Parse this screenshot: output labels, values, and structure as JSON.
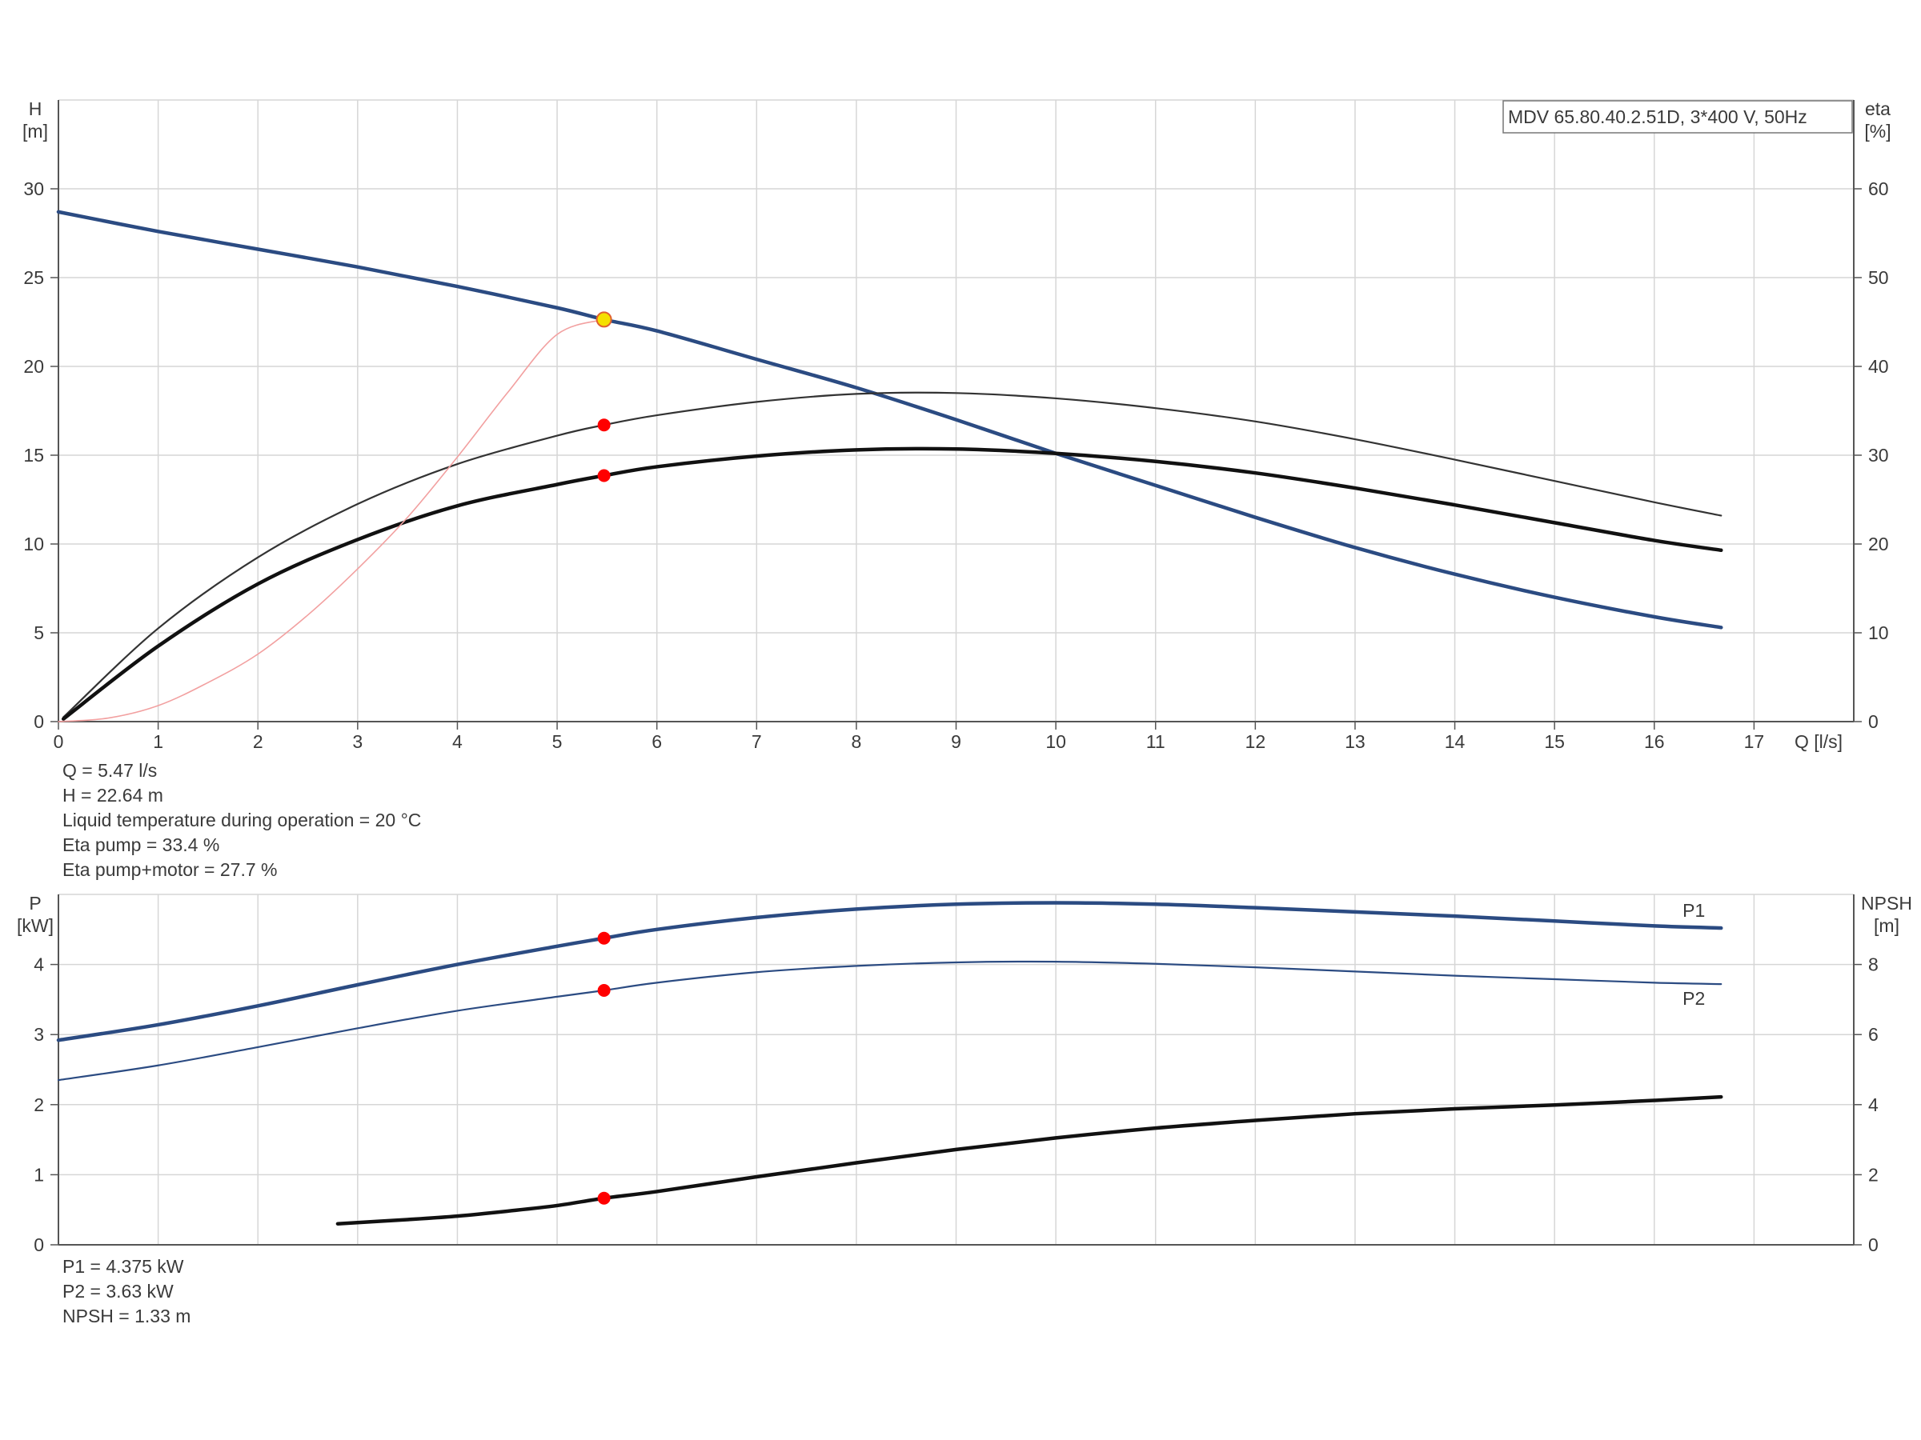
{
  "chart_data": [
    {
      "type": "line",
      "title": "MDV 65.80.40.2.51D, 3*400 V, 50Hz",
      "xlabel": "Q [l/s]",
      "ylabel_left": [
        "H",
        "[m]"
      ],
      "ylabel_right": [
        "eta",
        "[%]"
      ],
      "xlim": [
        0,
        18
      ],
      "ylim_left": [
        0,
        35
      ],
      "ylim_right": [
        0,
        70
      ],
      "x_ticks": [
        "0",
        "1",
        "2",
        "3",
        "4",
        "5",
        "6",
        "7",
        "8",
        "9",
        "10",
        "11",
        "12",
        "13",
        "14",
        "15",
        "16",
        "17"
      ],
      "y_left_ticks": [
        "0",
        "5",
        "10",
        "15",
        "20",
        "25",
        "30"
      ],
      "y_right_ticks": [
        "0",
        "10",
        "20",
        "30",
        "40",
        "50",
        "60"
      ],
      "grid": true,
      "series": [
        {
          "axis": "left",
          "color": "#2b4b82",
          "x": [
            0,
            1,
            2,
            3,
            4,
            5,
            5.47,
            6,
            7,
            8,
            9,
            10,
            11,
            12,
            13,
            14,
            15,
            16,
            16.67
          ],
          "y": [
            28.7,
            27.6,
            26.6,
            25.6,
            24.5,
            23.3,
            22.64,
            22.0,
            20.4,
            18.8,
            17.0,
            15.1,
            13.3,
            11.5,
            9.8,
            8.3,
            7.0,
            5.9,
            5.3
          ]
        },
        {
          "axis": "right",
          "color": "#333333",
          "x": [
            0.05,
            1,
            2,
            3,
            4,
            5,
            5.47,
            6,
            7,
            8,
            9,
            10,
            11,
            12,
            13,
            14,
            15,
            16,
            16.67
          ],
          "y": [
            0.5,
            10.5,
            18.5,
            24.5,
            29.0,
            32.2,
            33.4,
            34.5,
            36.0,
            36.9,
            37.0,
            36.4,
            35.3,
            33.8,
            31.8,
            29.5,
            27.1,
            24.7,
            23.2
          ]
        },
        {
          "axis": "right",
          "color": "#111111",
          "x": [
            0.05,
            1,
            2,
            3,
            4,
            5,
            5.47,
            6,
            7,
            8,
            9,
            10,
            11,
            12,
            13,
            14,
            15,
            16,
            16.67
          ],
          "y": [
            0.3,
            8.5,
            15.5,
            20.5,
            24.3,
            26.7,
            27.7,
            28.7,
            29.9,
            30.6,
            30.7,
            30.2,
            29.3,
            28.0,
            26.3,
            24.4,
            22.4,
            20.4,
            19.3
          ]
        },
        {
          "axis": "left",
          "color": "#f2a0a0",
          "x": [
            0,
            0.5,
            1,
            1.5,
            2,
            2.5,
            3,
            3.5,
            4,
            4.5,
            5,
            5.47
          ],
          "y": [
            0,
            0.2,
            0.9,
            2.2,
            3.8,
            6.0,
            8.6,
            11.5,
            14.9,
            18.5,
            21.8,
            22.64
          ]
        }
      ],
      "operating_points": [
        {
          "x": 5.47,
          "y": 22.64,
          "axis": "left",
          "color": "#f5e000"
        },
        {
          "x": 5.47,
          "y": 33.4,
          "axis": "right",
          "color": "#ff0000"
        },
        {
          "x": 5.47,
          "y": 27.7,
          "axis": "right",
          "color": "#ff0000"
        }
      ]
    },
    {
      "type": "line",
      "ylabel_left": [
        "P",
        "[kW]"
      ],
      "ylabel_right": [
        "NPSH",
        "[m]"
      ],
      "xlim": [
        0,
        18
      ],
      "ylim_left": [
        0,
        5
      ],
      "ylim_right": [
        0,
        10
      ],
      "x_ticks": [],
      "y_left_ticks": [
        "0",
        "1",
        "2",
        "3",
        "4"
      ],
      "y_right_ticks": [
        "0",
        "2",
        "4",
        "6",
        "8"
      ],
      "grid": true,
      "series": [
        {
          "name": "P1",
          "axis": "left",
          "color": "#2b4b82",
          "x": [
            0,
            1,
            2,
            3,
            4,
            5,
            5.47,
            6,
            7,
            8,
            9,
            10,
            11,
            12,
            13,
            14,
            15,
            16,
            16.67
          ],
          "y": [
            2.92,
            3.14,
            3.41,
            3.71,
            4.0,
            4.26,
            4.375,
            4.5,
            4.67,
            4.79,
            4.86,
            4.88,
            4.86,
            4.81,
            4.75,
            4.69,
            4.62,
            4.55,
            4.52
          ]
        },
        {
          "name": "P2",
          "axis": "left",
          "color": "#2b4b82",
          "x": [
            0,
            1,
            2,
            3,
            4,
            5,
            5.47,
            6,
            7,
            8,
            9,
            10,
            11,
            12,
            13,
            14,
            15,
            16,
            16.67
          ],
          "y": [
            2.35,
            2.56,
            2.82,
            3.09,
            3.34,
            3.54,
            3.63,
            3.74,
            3.89,
            3.98,
            4.03,
            4.04,
            4.01,
            3.96,
            3.9,
            3.84,
            3.79,
            3.74,
            3.72
          ]
        },
        {
          "axis": "right",
          "color": "#111111",
          "x": [
            2.8,
            3.5,
            4,
            4.5,
            5,
            5.47,
            6,
            7,
            8,
            9,
            10,
            11,
            12,
            13,
            14,
            15,
            16,
            16.67
          ],
          "y": [
            0.6,
            0.72,
            0.82,
            0.96,
            1.12,
            1.33,
            1.52,
            1.94,
            2.34,
            2.72,
            3.05,
            3.33,
            3.55,
            3.74,
            3.88,
            3.99,
            4.12,
            4.22
          ]
        }
      ],
      "operating_points": [
        {
          "x": 5.47,
          "y": 4.375,
          "axis": "left",
          "color": "#ff0000"
        },
        {
          "x": 5.47,
          "y": 3.63,
          "axis": "left",
          "color": "#ff0000"
        },
        {
          "x": 5.47,
          "y": 1.33,
          "axis": "right",
          "color": "#ff0000"
        }
      ]
    }
  ],
  "info_top": [
    "Q = 5.47 l/s",
    "H = 22.64 m",
    "Liquid temperature during operation = 20 °C",
    "Eta pump = 33.4 %",
    "Eta pump+motor = 27.7 %"
  ],
  "info_bottom": [
    "P1 = 4.375 kW",
    "P2 = 3.63 kW",
    "NPSH = 1.33 m"
  ]
}
